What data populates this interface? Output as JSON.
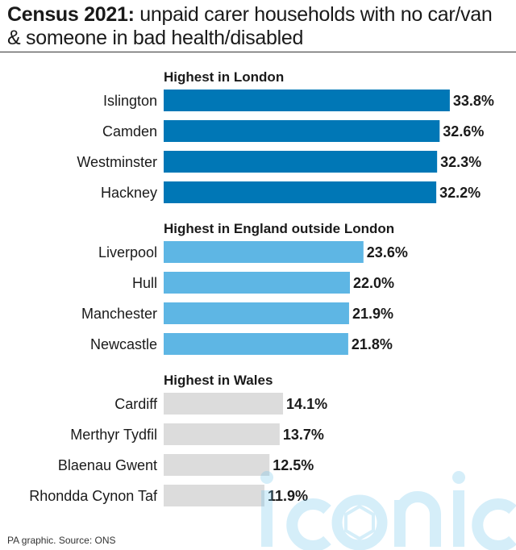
{
  "header": {
    "title_bold": "Census 2021:",
    "title_rest": " unpaid carer households with no car/van & someone in bad health/disabled"
  },
  "footer": {
    "source": "PA graphic. Source: ONS"
  },
  "watermark": {
    "text": "iconic"
  },
  "chart_data": {
    "type": "bar",
    "orientation": "horizontal",
    "value_format": "percent",
    "groups": [
      {
        "label": "Highest in London",
        "color": "#0077b6",
        "categories": [
          "Islington",
          "Camden",
          "Westminster",
          "Hackney"
        ],
        "values": [
          33.8,
          32.6,
          32.3,
          32.2
        ],
        "labels": [
          "33.8%",
          "32.6%",
          "32.3%",
          "32.2%"
        ]
      },
      {
        "label": "Highest in England outside London",
        "color": "#5eb6e4",
        "categories": [
          "Liverpool",
          "Hull",
          "Manchester",
          "Newcastle"
        ],
        "values": [
          23.6,
          22.0,
          21.9,
          21.8
        ],
        "labels": [
          "23.6%",
          "22.0%",
          "21.9%",
          "21.8%"
        ]
      },
      {
        "label": "Highest in Wales",
        "color": "#dcdcdc",
        "categories": [
          "Cardiff",
          "Merthyr Tydfil",
          "Blaenau Gwent",
          "Rhondda Cynon Taf"
        ],
        "values": [
          14.1,
          13.7,
          12.5,
          11.9
        ],
        "labels": [
          "14.1%",
          "13.7%",
          "12.5%",
          "11.9%"
        ]
      }
    ]
  }
}
